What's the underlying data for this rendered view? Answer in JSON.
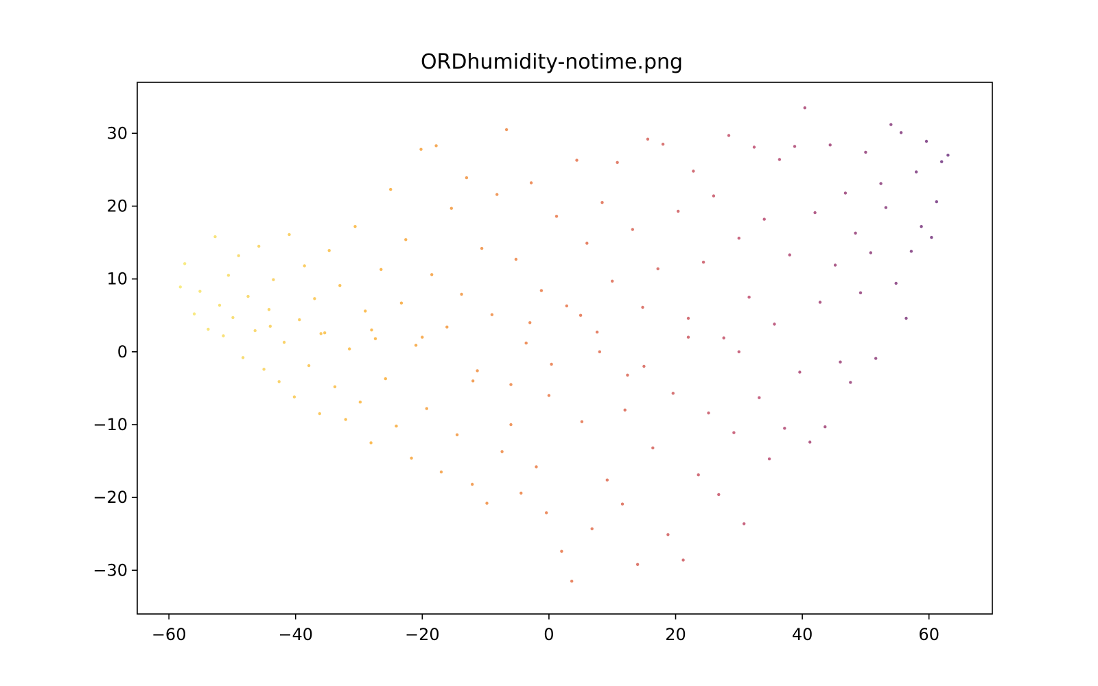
{
  "chart_data": {
    "type": "scatter",
    "title": "ORDhumidity-notime.png",
    "xlabel": "",
    "ylabel": "",
    "xlim": [
      -65,
      70
    ],
    "ylim": [
      -36,
      37
    ],
    "xticks": [
      -60,
      -40,
      -20,
      0,
      20,
      40,
      60
    ],
    "yticks": [
      -30,
      -20,
      -10,
      0,
      10,
      20,
      30
    ],
    "xtick_labels": [
      "−60",
      "−40",
      "−20",
      "0",
      "20",
      "40",
      "60"
    ],
    "ytick_labels": [
      "−30",
      "−20",
      "−10",
      "0",
      "10",
      "20",
      "30"
    ],
    "grid": false,
    "colormap": "inferno (reversed): yellow at low x, orange, red, purple at high x",
    "colors": {
      "low": "#f5e55c",
      "mid_low": "#f9a51b",
      "mid": "#e4602e",
      "mid_high": "#b3305a",
      "high": "#5b176e"
    },
    "points": [
      [
        -58.2,
        8.9
      ],
      [
        -57.5,
        12.1
      ],
      [
        -56.0,
        5.2
      ],
      [
        -55.1,
        8.3
      ],
      [
        -53.8,
        3.1
      ],
      [
        -52.7,
        15.8
      ],
      [
        -52.0,
        6.4
      ],
      [
        -51.4,
        2.2
      ],
      [
        -50.6,
        10.5
      ],
      [
        -49.9,
        4.7
      ],
      [
        -49.0,
        13.2
      ],
      [
        -48.3,
        -0.8
      ],
      [
        -47.5,
        7.6
      ],
      [
        -46.4,
        2.9
      ],
      [
        -45.8,
        14.5
      ],
      [
        -45.0,
        -2.4
      ],
      [
        -44.2,
        5.8
      ],
      [
        -43.5,
        9.9
      ],
      [
        -42.6,
        -4.1
      ],
      [
        -41.8,
        1.3
      ],
      [
        -41.0,
        16.1
      ],
      [
        -40.2,
        -6.2
      ],
      [
        -39.4,
        4.4
      ],
      [
        -38.6,
        11.8
      ],
      [
        -37.9,
        -1.9
      ],
      [
        -37.0,
        7.3
      ],
      [
        -36.2,
        -8.5
      ],
      [
        -35.4,
        2.6
      ],
      [
        -34.7,
        13.9
      ],
      [
        -33.8,
        -4.8
      ],
      [
        -33.0,
        9.1
      ],
      [
        -32.1,
        -9.3
      ],
      [
        -31.5,
        0.4
      ],
      [
        -30.6,
        17.2
      ],
      [
        -29.8,
        -6.9
      ],
      [
        -29.0,
        5.6
      ],
      [
        -28.1,
        -12.5
      ],
      [
        -27.4,
        1.8
      ],
      [
        -26.5,
        11.3
      ],
      [
        -25.8,
        -3.7
      ],
      [
        -25.0,
        22.3
      ],
      [
        -24.1,
        -10.2
      ],
      [
        -23.3,
        6.7
      ],
      [
        -22.6,
        15.4
      ],
      [
        -21.7,
        -14.6
      ],
      [
        -21.0,
        0.9
      ],
      [
        -20.2,
        27.8
      ],
      [
        -19.3,
        -7.8
      ],
      [
        -18.5,
        10.6
      ],
      [
        -17.8,
        28.3
      ],
      [
        -17.0,
        -16.5
      ],
      [
        -16.1,
        3.4
      ],
      [
        -15.4,
        19.7
      ],
      [
        -14.5,
        -11.4
      ],
      [
        -13.8,
        7.9
      ],
      [
        -13.0,
        23.9
      ],
      [
        -12.1,
        -18.2
      ],
      [
        -11.3,
        -2.6
      ],
      [
        -10.6,
        14.2
      ],
      [
        -9.8,
        -20.8
      ],
      [
        -9.0,
        5.1
      ],
      [
        -8.2,
        21.6
      ],
      [
        -7.4,
        -13.7
      ],
      [
        -6.7,
        30.5
      ],
      [
        -6.0,
        -4.5
      ],
      [
        -5.2,
        12.7
      ],
      [
        -4.4,
        -19.4
      ],
      [
        -3.6,
        1.2
      ],
      [
        -2.8,
        23.2
      ],
      [
        -2.0,
        -15.8
      ],
      [
        -1.2,
        8.4
      ],
      [
        -0.4,
        -22.1
      ],
      [
        0.4,
        -1.7
      ],
      [
        1.2,
        18.6
      ],
      [
        2.0,
        -27.4
      ],
      [
        2.8,
        6.3
      ],
      [
        3.6,
        -31.5
      ],
      [
        4.4,
        26.3
      ],
      [
        5.2,
        -9.6
      ],
      [
        6.0,
        14.9
      ],
      [
        6.8,
        -24.3
      ],
      [
        7.6,
        2.7
      ],
      [
        8.4,
        20.5
      ],
      [
        9.2,
        -17.6
      ],
      [
        10.0,
        9.7
      ],
      [
        10.8,
        26.0
      ],
      [
        11.6,
        -20.9
      ],
      [
        12.4,
        -3.2
      ],
      [
        13.2,
        16.8
      ],
      [
        14.0,
        -29.2
      ],
      [
        14.8,
        6.1
      ],
      [
        15.6,
        29.2
      ],
      [
        16.4,
        -13.2
      ],
      [
        17.2,
        11.4
      ],
      [
        18.0,
        28.5
      ],
      [
        18.8,
        -25.1
      ],
      [
        19.6,
        -5.7
      ],
      [
        20.4,
        19.3
      ],
      [
        21.2,
        -28.6
      ],
      [
        22.0,
        4.6
      ],
      [
        22.8,
        24.8
      ],
      [
        23.6,
        -16.9
      ],
      [
        24.4,
        12.3
      ],
      [
        25.2,
        -8.4
      ],
      [
        26.0,
        21.4
      ],
      [
        26.8,
        -19.6
      ],
      [
        27.6,
        1.9
      ],
      [
        28.4,
        29.7
      ],
      [
        29.2,
        -11.1
      ],
      [
        30.0,
        15.6
      ],
      [
        30.8,
        -23.6
      ],
      [
        31.6,
        7.5
      ],
      [
        32.4,
        28.1
      ],
      [
        33.2,
        -6.3
      ],
      [
        34.0,
        18.2
      ],
      [
        34.8,
        -14.7
      ],
      [
        35.6,
        3.8
      ],
      [
        36.4,
        26.4
      ],
      [
        37.2,
        -10.5
      ],
      [
        38.0,
        13.3
      ],
      [
        38.8,
        28.2
      ],
      [
        39.6,
        -2.8
      ],
      [
        40.4,
        33.5
      ],
      [
        41.2,
        -12.4
      ],
      [
        42.0,
        19.1
      ],
      [
        42.8,
        6.8
      ],
      [
        43.6,
        -10.3
      ],
      [
        44.4,
        28.4
      ],
      [
        45.2,
        11.9
      ],
      [
        46.0,
        -1.4
      ],
      [
        46.8,
        21.8
      ],
      [
        47.6,
        -4.2
      ],
      [
        48.4,
        16.3
      ],
      [
        49.2,
        8.1
      ],
      [
        50.0,
        27.4
      ],
      [
        50.8,
        13.6
      ],
      [
        51.6,
        -0.9
      ],
      [
        52.4,
        23.1
      ],
      [
        53.2,
        19.8
      ],
      [
        54.0,
        31.2
      ],
      [
        54.8,
        9.4
      ],
      [
        55.6,
        30.1
      ],
      [
        56.4,
        4.6
      ],
      [
        57.2,
        13.8
      ],
      [
        58.0,
        24.7
      ],
      [
        58.8,
        17.2
      ],
      [
        59.6,
        28.9
      ],
      [
        60.4,
        15.7
      ],
      [
        61.2,
        20.6
      ],
      [
        62.0,
        26.1
      ],
      [
        63.0,
        27.0
      ],
      [
        -3.0,
        4.0
      ],
      [
        0.0,
        -6.0
      ],
      [
        8.0,
        0.0
      ],
      [
        15.0,
        -2.0
      ],
      [
        -12.0,
        -4.0
      ],
      [
        -20.0,
        2.0
      ],
      [
        -28.0,
        3.0
      ],
      [
        22.0,
        2.0
      ],
      [
        30.0,
        0.0
      ],
      [
        -36.0,
        2.5
      ],
      [
        -44.0,
        3.5
      ],
      [
        5.0,
        5.0
      ],
      [
        12.0,
        -8.0
      ],
      [
        -6.0,
        -10.0
      ]
    ]
  }
}
